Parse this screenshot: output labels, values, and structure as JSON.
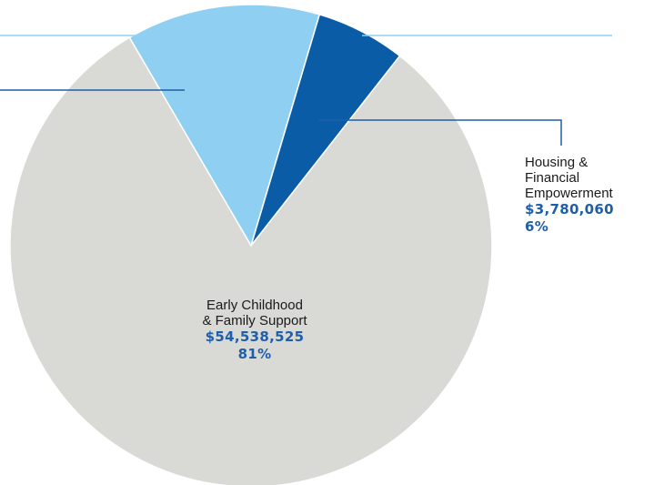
{
  "chart_data": {
    "type": "pie",
    "title": "",
    "slices": [
      {
        "name": "Early Childhood & Family Support",
        "name_lines": [
          "Early Childhood",
          "& Family Support"
        ],
        "amount": "$54,538,525",
        "percent_label": "81%",
        "value": 81,
        "color": "#d9d9d6"
      },
      {
        "name": "",
        "amount": "",
        "percent_label": "",
        "value": 13,
        "color": "#8fd0f2"
      },
      {
        "name": "Housing & Financial Empowerment",
        "name_lines": [
          "Housing &",
          "Financial",
          "Empowerment"
        ],
        "amount": "$3,780,060",
        "percent_label": "6%",
        "value": 6,
        "color": "#0a5ca6"
      }
    ],
    "legend": "none",
    "colors": {
      "leader_light": "#8fd0f2",
      "leader_dark": "#1f5fa8",
      "value_text": "#1f5fa8"
    }
  }
}
